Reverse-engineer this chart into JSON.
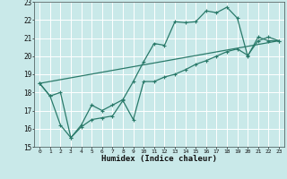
{
  "xlabel": "Humidex (Indice chaleur)",
  "bg_color": "#c9e9e9",
  "grid_color": "#ffffff",
  "line_color": "#2a7a6a",
  "xlim": [
    -0.5,
    23.5
  ],
  "ylim": [
    15,
    23
  ],
  "yticks": [
    15,
    16,
    17,
    18,
    19,
    20,
    21,
    22,
    23
  ],
  "xticks": [
    0,
    1,
    2,
    3,
    4,
    5,
    6,
    7,
    8,
    9,
    10,
    11,
    12,
    13,
    14,
    15,
    16,
    17,
    18,
    19,
    20,
    21,
    22,
    23
  ],
  "line1_x": [
    0,
    1,
    2,
    3,
    4,
    5,
    6,
    7,
    8,
    9,
    10,
    11,
    12,
    13,
    14,
    15,
    16,
    17,
    18,
    19,
    20,
    21,
    22,
    23
  ],
  "line1_y": [
    18.5,
    17.8,
    18.0,
    15.5,
    16.2,
    17.3,
    17.0,
    17.3,
    17.6,
    18.6,
    19.7,
    20.7,
    20.6,
    21.9,
    21.85,
    21.9,
    22.5,
    22.4,
    22.7,
    22.1,
    20.0,
    21.05,
    20.85,
    20.85
  ],
  "line2_x": [
    0,
    1,
    2,
    3,
    4,
    5,
    6,
    7,
    8,
    9,
    10,
    11,
    12,
    13,
    14,
    15,
    16,
    17,
    18,
    19,
    20,
    21,
    22,
    23
  ],
  "line2_y": [
    18.5,
    17.8,
    16.2,
    15.5,
    16.1,
    16.5,
    16.6,
    16.7,
    17.55,
    16.5,
    18.6,
    18.6,
    18.85,
    19.0,
    19.25,
    19.55,
    19.75,
    20.0,
    20.25,
    20.4,
    20.05,
    20.85,
    21.05,
    20.85
  ],
  "line3_x": [
    0,
    23
  ],
  "line3_y": [
    18.5,
    20.85
  ]
}
